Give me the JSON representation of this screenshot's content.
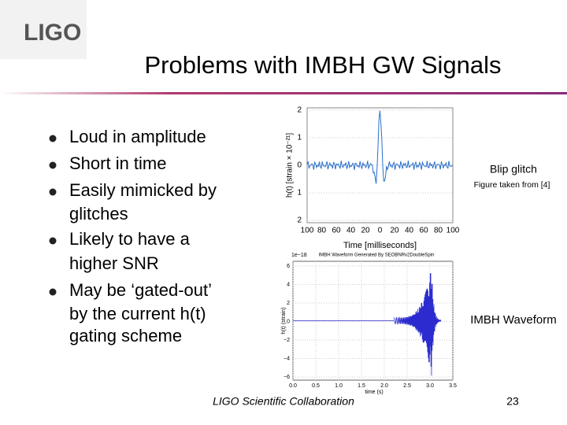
{
  "header": {
    "logo": "LIGO",
    "title": "Problems with IMBH GW Signals"
  },
  "bullets": [
    "Loud in amplitude",
    "Short in time",
    "Easily mimicked by glitches",
    "Likely to have a higher SNR",
    "May be ‘gated-out’ by the current h(t) gating scheme"
  ],
  "figures": [
    {
      "caption": "Blip glitch",
      "source": "Figure taken from [4]",
      "y_label": "h(t) [strain × 10⁻²¹]",
      "x_label": "Time [milliseconds]",
      "y_ticks": [
        "2",
        "1",
        "0",
        "1",
        "2"
      ],
      "x_ticks": [
        "100",
        "80",
        "60",
        "40",
        "20",
        "0",
        "20",
        "40",
        "60",
        "80",
        "100"
      ]
    },
    {
      "caption": "IMBH Waveform",
      "plot_title": "IMBH Waveform Generated By SEOBNRv2DoubleSpin",
      "scale": "1e−18",
      "y_label": "h(t) (strain)",
      "x_label": "time (s)",
      "y_ticks": [
        "6",
        "4",
        "2",
        "0",
        "−2",
        "−4",
        "−6"
      ],
      "x_ticks": [
        "0.0",
        "0.5",
        "1.0",
        "1.5",
        "2.0",
        "2.5",
        "3.0",
        "3.5"
      ]
    }
  ],
  "footer": {
    "text": "LIGO Scientific Collaboration",
    "page": "23"
  }
}
